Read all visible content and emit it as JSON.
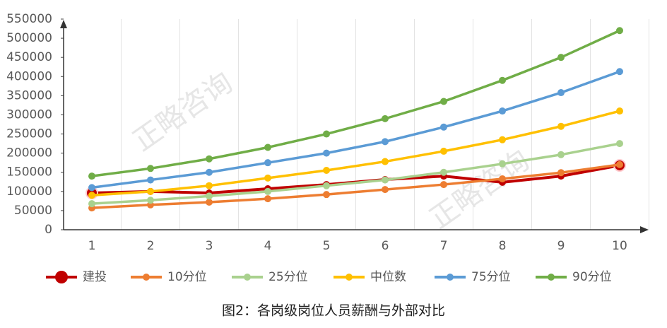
{
  "chart_data": {
    "type": "line",
    "caption": "图2：各岗级岗位人员薪酬与外部对比",
    "watermark": "正略咨询",
    "categories": [
      "1",
      "2",
      "3",
      "4",
      "5",
      "6",
      "7",
      "8",
      "9",
      "10"
    ],
    "series": [
      {
        "name": "建投",
        "color": "#c00000",
        "values": [
          96000,
          100000,
          96000,
          107000,
          118000,
          131000,
          140000,
          124000,
          140000,
          168000
        ]
      },
      {
        "name": "10分位",
        "color": "#ed7d31",
        "values": [
          57000,
          65000,
          72000,
          81000,
          92000,
          105000,
          118000,
          133000,
          149000,
          170000
        ]
      },
      {
        "name": "25分位",
        "color": "#a9d18e",
        "values": [
          68000,
          77000,
          88000,
          100000,
          115000,
          130000,
          150000,
          172000,
          196000,
          225000
        ]
      },
      {
        "name": "中位数",
        "color": "#ffc000",
        "values": [
          90000,
          100000,
          115000,
          135000,
          155000,
          178000,
          205000,
          235000,
          270000,
          310000
        ]
      },
      {
        "name": "75分位",
        "color": "#5b9bd5",
        "values": [
          110000,
          130000,
          150000,
          175000,
          200000,
          230000,
          268000,
          310000,
          358000,
          413000
        ]
      },
      {
        "name": "90分位",
        "color": "#70ad47",
        "values": [
          140000,
          160000,
          185000,
          215000,
          250000,
          290000,
          335000,
          390000,
          450000,
          520000
        ]
      }
    ],
    "ylim": [
      0,
      550000
    ],
    "yticks": [
      0,
      50000,
      100000,
      150000,
      200000,
      250000,
      300000,
      350000,
      400000,
      450000,
      500000,
      550000
    ]
  }
}
